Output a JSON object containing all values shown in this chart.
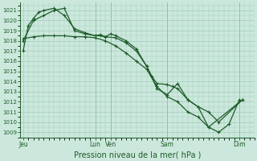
{
  "title": "Pression niveau de la mer( hPa )",
  "bg_color": "#cce8dc",
  "grid_color": "#a0ccbc",
  "line_color": "#1f5c2a",
  "ylim": [
    1008.5,
    1021.8
  ],
  "ytick_vals": [
    1009,
    1010,
    1011,
    1012,
    1013,
    1014,
    1015,
    1016,
    1017,
    1018,
    1019,
    1020,
    1021
  ],
  "xtick_labels": [
    "Jeu",
    "Lun",
    "Ven",
    "Sam",
    "Dim"
  ],
  "xtick_pos": [
    0,
    7,
    8.5,
    14,
    21
  ],
  "xlim": [
    -0.3,
    22.5
  ],
  "vlines": [
    7,
    8.5,
    14,
    21
  ],
  "s1_x": [
    0,
    0.5,
    1.0,
    1.5,
    2.0,
    3.0,
    4.0,
    5.0,
    6.0,
    7.0,
    7.5,
    8.0,
    9.0,
    10.0,
    11.0,
    12.0,
    13.0,
    14.0,
    15.0,
    16.0,
    17.0,
    18.0,
    21.3
  ],
  "s1_y": [
    1017.0,
    1019.5,
    1020.2,
    1020.8,
    1021.0,
    1021.2,
    1020.5,
    1019.2,
    1018.8,
    1018.5,
    1018.6,
    1018.4,
    1018.3,
    1017.8,
    1017.0,
    1015.5,
    1013.3,
    1012.7,
    1013.8,
    1012.2,
    1011.5,
    1009.5,
    1012.2
  ],
  "s2_x": [
    0,
    1.0,
    2.0,
    3.0,
    4.0,
    5.0,
    6.0,
    7.0,
    8.0,
    9.0,
    10.0,
    11.0,
    12.0,
    13.0,
    14.0,
    15.0,
    16.0,
    17.0,
    18.0,
    19.0,
    20.0,
    21.0
  ],
  "s2_y": [
    1018.2,
    1018.4,
    1018.5,
    1018.5,
    1018.5,
    1018.4,
    1018.4,
    1018.3,
    1018.0,
    1017.5,
    1016.8,
    1016.0,
    1015.2,
    1013.5,
    1012.5,
    1012.0,
    1011.0,
    1010.5,
    1009.5,
    1009.0,
    1009.8,
    1012.2
  ],
  "s3_x": [
    0,
    1.0,
    2.0,
    3.0,
    4.0,
    5.0,
    6.0,
    7.0,
    7.5,
    8.0,
    8.5,
    9.0,
    10.0,
    11.0,
    12.0,
    12.5,
    13.0,
    14.0,
    14.5,
    15.0,
    16.0,
    17.0,
    18.0,
    19.0,
    21.3
  ],
  "s3_y": [
    1018.0,
    1020.0,
    1020.5,
    1021.0,
    1021.2,
    1019.0,
    1018.7,
    1018.5,
    1018.5,
    1018.4,
    1018.7,
    1018.5,
    1018.0,
    1017.2,
    1015.5,
    1014.5,
    1013.8,
    1013.7,
    1013.5,
    1013.3,
    1012.2,
    1011.5,
    1011.0,
    1010.0,
    1012.2
  ]
}
